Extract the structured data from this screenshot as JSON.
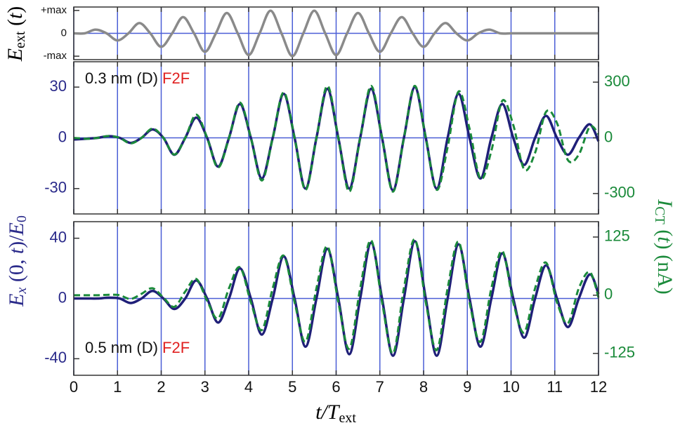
{
  "chart_data": [
    {
      "type": "line",
      "ylabel": [
        "E",
        "ext",
        " (",
        "t",
        ")"
      ],
      "xlim": [
        0,
        12
      ],
      "xticks": [
        0,
        1,
        2,
        3,
        4,
        5,
        6,
        7,
        8,
        9,
        10,
        11,
        12
      ],
      "ylim": [
        -1.15,
        1.15
      ],
      "yticks": [
        {
          "value": 1,
          "label": "+max"
        },
        0,
        {
          "value": -1,
          "label": "-max"
        }
      ],
      "grid": true,
      "zero_line": true,
      "xtick_labels": false,
      "ytick_color": "#111111",
      "x": [
        0,
        0.25,
        0.5,
        0.75,
        1,
        1.25,
        1.5,
        1.75,
        2,
        2.25,
        2.5,
        2.75,
        3,
        3.25,
        3.5,
        3.75,
        4,
        4.25,
        4.5,
        4.75,
        5,
        5.25,
        5.5,
        5.75,
        6,
        6.25,
        6.5,
        6.75,
        7,
        7.25,
        7.5,
        7.75,
        8,
        8.25,
        8.5,
        8.75,
        9,
        9.25,
        9.5,
        9.75,
        10,
        10.25,
        10.5,
        10.75,
        11,
        11.25,
        11.5,
        11.75,
        12
      ],
      "series": [
        {
          "color": "#8a8a8a",
          "dash": false,
          "values": [
            0,
            0,
            0.16,
            0,
            -0.31,
            0,
            0.45,
            0,
            -0.59,
            0,
            0.71,
            0,
            -0.81,
            0,
            0.89,
            0,
            -0.95,
            0,
            0.99,
            0,
            -1,
            0,
            0.99,
            0,
            -0.95,
            0,
            0.89,
            0,
            -0.81,
            0,
            0.71,
            0,
            -0.59,
            0,
            0.45,
            0,
            -0.31,
            0,
            0.16,
            0,
            0,
            0,
            0,
            0,
            0,
            0,
            0,
            0,
            0
          ]
        }
      ]
    },
    {
      "type": "line",
      "ylabel": [
        "E",
        "x",
        " (0, ",
        "t",
        ")/",
        "E",
        "0"
      ],
      "y2label": [
        "I",
        "CT",
        " (",
        "t",
        ") (nA)"
      ],
      "annotation": [
        {
          "text": "0.3 nm (D) ",
          "color": "#111111"
        },
        {
          "text": "F2F",
          "color": "#e02020"
        }
      ],
      "xlim": [
        0,
        12
      ],
      "xticks": [
        0,
        1,
        2,
        3,
        4,
        5,
        6,
        7,
        8,
        9,
        10,
        11,
        12
      ],
      "ylim": [
        -45,
        45
      ],
      "yticks": [
        30,
        0,
        -30
      ],
      "y2lim": [
        -410,
        410
      ],
      "y2ticks": [
        300,
        0,
        -300
      ],
      "grid": true,
      "zero_line": true,
      "xtick_labels": false,
      "ytick_color": "#2a2a8a",
      "y2tick_color": "#1a8a3a",
      "x": [
        0,
        0.3,
        0.55,
        0.8,
        1.05,
        1.3,
        1.55,
        1.8,
        2.05,
        2.3,
        2.55,
        2.8,
        3.05,
        3.3,
        3.55,
        3.8,
        4.05,
        4.3,
        4.55,
        4.8,
        5.05,
        5.3,
        5.55,
        5.8,
        6.05,
        6.3,
        6.55,
        6.8,
        7.05,
        7.3,
        7.55,
        7.8,
        8.05,
        8.3,
        8.55,
        8.8,
        9.05,
        9.3,
        9.55,
        9.8,
        10.05,
        10.3,
        10.55,
        10.8,
        11.05,
        11.3,
        11.55,
        11.8,
        12
      ],
      "series": [
        {
          "color": "#1f1f78",
          "dash": false,
          "values": [
            -1,
            -0.5,
            0,
            1,
            0,
            -3,
            0,
            5,
            0,
            -10,
            0,
            12,
            0,
            -17,
            0,
            20,
            0,
            -24,
            0,
            26,
            0,
            -30,
            0,
            29,
            0,
            -30,
            0,
            29,
            0,
            -31,
            0,
            30,
            0,
            -30,
            0,
            26,
            0,
            -24,
            0,
            20,
            0,
            -16,
            0,
            13,
            0,
            -10,
            0,
            8,
            -2
          ]
        },
        {
          "color": "#1a8a3a",
          "dash": true,
          "axis": "y2",
          "values": [
            0,
            -5,
            0,
            10,
            0,
            -30,
            0,
            50,
            0,
            -90,
            0,
            125,
            0,
            -160,
            0,
            190,
            0,
            -230,
            0,
            245,
            0,
            -280,
            0,
            280,
            0,
            -290,
            0,
            280,
            0,
            -290,
            0,
            280,
            0,
            -280,
            -50,
            250,
            50,
            -220,
            -70,
            200,
            70,
            -170,
            -80,
            140,
            80,
            -120,
            -90,
            60,
            20
          ]
        }
      ]
    },
    {
      "type": "line",
      "xlabel": [
        "t/T",
        "ext"
      ],
      "annotation": [
        {
          "text": "0.5 nm (D) ",
          "color": "#111111"
        },
        {
          "text": "F2F",
          "color": "#e02020"
        }
      ],
      "xlim": [
        0,
        12
      ],
      "xticks": [
        0,
        1,
        2,
        3,
        4,
        5,
        6,
        7,
        8,
        9,
        10,
        11,
        12
      ],
      "ylim": [
        -51,
        51
      ],
      "yticks": [
        40,
        0,
        -40
      ],
      "y2lim": [
        -172,
        158
      ],
      "y2ticks": [
        125,
        0,
        -125
      ],
      "grid": true,
      "zero_line": true,
      "xtick_labels": true,
      "ytick_color": "#2a2a8a",
      "y2tick_color": "#1a8a3a",
      "x": [
        0,
        0.3,
        0.55,
        0.8,
        1.05,
        1.3,
        1.55,
        1.8,
        2.05,
        2.3,
        2.55,
        2.8,
        3.05,
        3.3,
        3.55,
        3.8,
        4.05,
        4.3,
        4.55,
        4.8,
        5.05,
        5.3,
        5.55,
        5.8,
        6.05,
        6.3,
        6.55,
        6.8,
        7.05,
        7.3,
        7.55,
        7.8,
        8.05,
        8.3,
        8.55,
        8.8,
        9.05,
        9.3,
        9.55,
        9.8,
        10.05,
        10.3,
        10.55,
        10.8,
        11.05,
        11.3,
        11.55,
        11.8,
        12
      ],
      "series": [
        {
          "color": "#1f1f78",
          "dash": false,
          "values": [
            0,
            0,
            0,
            0.5,
            0,
            -3,
            0,
            5,
            0,
            -7,
            0,
            12,
            0,
            -16,
            0,
            20,
            0,
            -24,
            0,
            28,
            0,
            -32,
            0,
            33,
            0,
            -37,
            0,
            37,
            0,
            -38,
            0,
            38,
            0,
            -38,
            0,
            36,
            0,
            -32,
            0,
            30,
            0,
            -26,
            0,
            22,
            0,
            -19,
            0,
            16,
            3
          ]
        },
        {
          "color": "#1a8a3a",
          "dash": true,
          "axis": "y2",
          "values": [
            0,
            0,
            0,
            1,
            0,
            -8,
            3,
            15,
            -5,
            -25,
            8,
            35,
            -12,
            -50,
            15,
            60,
            -15,
            -75,
            15,
            85,
            -15,
            -100,
            15,
            105,
            -15,
            -115,
            15,
            118,
            -15,
            -125,
            15,
            120,
            -15,
            -118,
            15,
            115,
            -15,
            -100,
            15,
            95,
            -15,
            -80,
            15,
            70,
            -15,
            -60,
            15,
            50,
            -5
          ]
        }
      ]
    }
  ]
}
